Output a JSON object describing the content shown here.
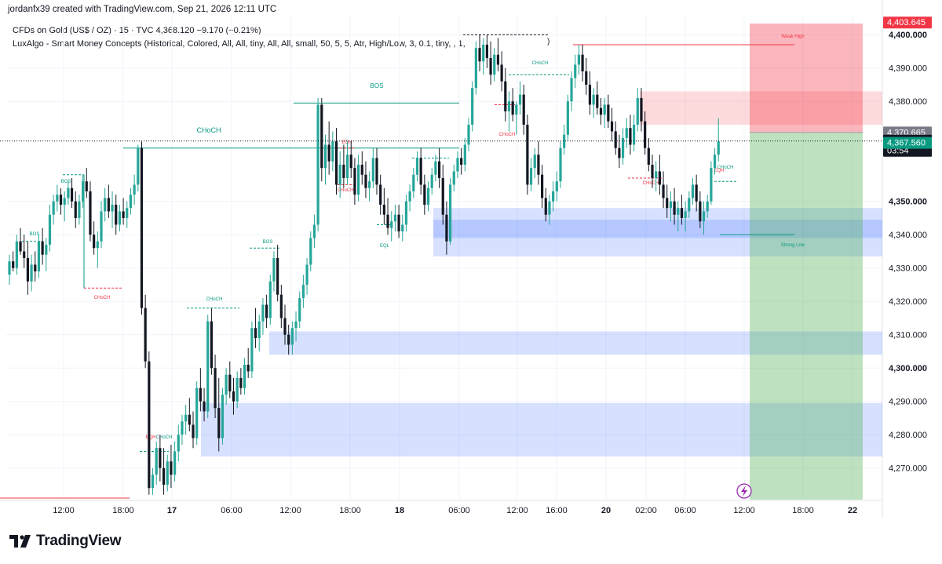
{
  "attribution": "jordanfx39 created with TradingView.com, Sep 21, 2026 12:11 UTC",
  "legend": {
    "symbol_line": "CFDs on Gold (US$ / OZ) · 15 · TVC  4,368.120  −9.170 (−0.21%)",
    "indicator_line": "LuxAlgo - Smart Money Concepts (Historical, Colored, All, All, tiny, All, All, small, 50, 5, 5, Atr, High/Low, 3, 0.1, tiny, , 1,"
  },
  "brand": {
    "name": "TradingView",
    "icon": "tradingview-logo-icon"
  },
  "colors": {
    "up": "#26a69a",
    "down": "#131722",
    "supply": "#f77c80",
    "demand": "#2962ff",
    "long_zone": "#4caf50",
    "bull_structure": "#089981",
    "bear_structure": "#f23645"
  },
  "chart_data": {
    "type": "candlestick",
    "symbol": "CFDs on Gold (US$ / OZ)",
    "interval": "15",
    "ylim": [
      4262,
      4412
    ],
    "y_ticks": [
      {
        "v": 4400,
        "label": "4,400.000",
        "bold": true
      },
      {
        "v": 4390,
        "label": "4,390.000",
        "bold": false
      },
      {
        "v": 4380,
        "label": "4,380.000",
        "bold": false
      },
      {
        "v": 4350,
        "label": "4,350.000",
        "bold": true
      },
      {
        "v": 4340,
        "label": "4,340.000",
        "bold": false
      },
      {
        "v": 4330,
        "label": "4,330.000",
        "bold": false
      },
      {
        "v": 4320,
        "label": "4,320.000",
        "bold": false
      },
      {
        "v": 4310,
        "label": "4,310.000",
        "bold": false
      },
      {
        "v": 4300,
        "label": "4,300.000",
        "bold": true
      },
      {
        "v": 4290,
        "label": "4,290.000",
        "bold": false
      },
      {
        "v": 4280,
        "label": "4,280.000",
        "bold": false
      },
      {
        "v": 4270,
        "label": "4,270.000",
        "bold": false
      }
    ],
    "x_ticks": [
      {
        "label": "12:00",
        "bold": false
      },
      {
        "label": "18:00",
        "bold": false
      },
      {
        "label": "17",
        "bold": true
      },
      {
        "label": "06:00",
        "bold": false
      },
      {
        "label": "12:00",
        "bold": false
      },
      {
        "label": "18:00",
        "bold": false
      },
      {
        "label": "18",
        "bold": true
      },
      {
        "label": "06:00",
        "bold": false
      },
      {
        "label": "12:00",
        "bold": false
      },
      {
        "label": "16:00",
        "bold": false
      },
      {
        "label": "20",
        "bold": true
      },
      {
        "label": "02:00",
        "bold": false
      },
      {
        "label": "06:00",
        "bold": false
      },
      {
        "label": "12:00",
        "bold": false
      },
      {
        "label": "18:00",
        "bold": false
      },
      {
        "label": "22",
        "bold": true
      }
    ],
    "price_labels": [
      {
        "value": 4403.645,
        "label": "4,403.645",
        "color": "#f23645"
      },
      {
        "value": 4370.665,
        "label": "4,370.665",
        "color": "#787b86"
      },
      {
        "value": 4368.12,
        "label": "4,368.120",
        "sub": "03:54",
        "color": "#131722"
      },
      {
        "value": 4367.56,
        "label": "4,367.560",
        "color": "#089981"
      }
    ],
    "last_price": 4368.12,
    "countdown": "03:54",
    "position": {
      "type": "long",
      "entry": 4370.665,
      "target": 4403.645,
      "stop": 4262
    },
    "zones": [
      {
        "kind": "supply",
        "top": 4383,
        "bottom": 4373
      },
      {
        "kind": "demand",
        "top": 4348,
        "bottom": 4339
      },
      {
        "kind": "demand",
        "top": 4344.5,
        "bottom": 4333.5
      },
      {
        "kind": "demand",
        "top": 4311,
        "bottom": 4304
      },
      {
        "kind": "demand",
        "top": 4289.5,
        "bottom": 4273.5
      }
    ],
    "structure_labels": [
      {
        "text": "BOS",
        "color": "bull"
      },
      {
        "text": "CHoCH",
        "color": "bull"
      },
      {
        "text": "BOS",
        "color": "bull"
      },
      {
        "text": "BOS",
        "color": "bull"
      },
      {
        "text": "BOS",
        "color": "bull"
      },
      {
        "text": "CHoCH",
        "color": "bear"
      },
      {
        "text": "EQH",
        "color": "bear"
      },
      {
        "text": "CHoCH",
        "color": "bull"
      },
      {
        "text": "CHoCH",
        "color": "bear"
      },
      {
        "text": "EQH",
        "color": "bear"
      },
      {
        "text": "CHoCH",
        "color": "bull"
      },
      {
        "text": "EQL",
        "color": "bull"
      },
      {
        "text": "CHoCH",
        "color": "bull"
      },
      {
        "text": "CHoCH",
        "color": "bear"
      },
      {
        "text": "CHoCH",
        "color": "bear"
      },
      {
        "text": "CHoCH",
        "color": "bull"
      },
      {
        "text": "EQH",
        "color": "bear"
      },
      {
        "text": "Weak High",
        "color": "bear"
      },
      {
        "text": "Strong Low",
        "color": "bull"
      }
    ],
    "candles": [
      [
        4328,
        4334,
        4325,
        4332
      ],
      [
        4332,
        4335,
        4329,
        4330
      ],
      [
        4330,
        4340,
        4328,
        4338
      ],
      [
        4338,
        4342,
        4334,
        4335
      ],
      [
        4335,
        4340,
        4330,
        4333
      ],
      [
        4333,
        4338,
        4322,
        4326
      ],
      [
        4326,
        4334,
        4323,
        4331
      ],
      [
        4331,
        4335,
        4326,
        4329
      ],
      [
        4329,
        4340,
        4327,
        4338
      ],
      [
        4338,
        4342,
        4331,
        4334
      ],
      [
        4334,
        4339,
        4329,
        4337
      ],
      [
        4337,
        4349,
        4335,
        4346
      ],
      [
        4346,
        4352,
        4343,
        4350
      ],
      [
        4350,
        4355,
        4347,
        4352
      ],
      [
        4352,
        4354,
        4346,
        4349
      ],
      [
        4349,
        4353,
        4344,
        4351
      ],
      [
        4351,
        4356,
        4349,
        4354
      ],
      [
        4354,
        4357,
        4348,
        4350
      ],
      [
        4350,
        4353,
        4342,
        4345
      ],
      [
        4345,
        4352,
        4343,
        4350
      ],
      [
        4350,
        4358,
        4348,
        4356
      ],
      [
        4356,
        4360,
        4351,
        4353
      ],
      [
        4353,
        4356,
        4338,
        4340
      ],
      [
        4340,
        4344,
        4334,
        4336
      ],
      [
        4336,
        4341,
        4330,
        4338
      ],
      [
        4338,
        4350,
        4336,
        4347
      ],
      [
        4347,
        4354,
        4344,
        4351
      ],
      [
        4351,
        4355,
        4345,
        4347
      ],
      [
        4347,
        4353,
        4342,
        4349
      ],
      [
        4349,
        4352,
        4340,
        4343
      ],
      [
        4343,
        4349,
        4341,
        4347
      ],
      [
        4347,
        4351,
        4343,
        4345
      ],
      [
        4345,
        4350,
        4342,
        4348
      ],
      [
        4348,
        4354,
        4346,
        4352
      ],
      [
        4352,
        4358,
        4349,
        4355
      ],
      [
        4355,
        4367,
        4353,
        4366
      ],
      [
        4366,
        4368,
        4316,
        4318
      ],
      [
        4318,
        4322,
        4300,
        4302
      ],
      [
        4302,
        4305,
        4262,
        4264
      ],
      [
        4264,
        4270,
        4262,
        4268
      ],
      [
        4268,
        4278,
        4265,
        4276
      ],
      [
        4276,
        4280,
        4266,
        4270
      ],
      [
        4270,
        4276,
        4262,
        4265
      ],
      [
        4265,
        4274,
        4263,
        4272
      ],
      [
        4272,
        4277,
        4264,
        4268
      ],
      [
        4268,
        4278,
        4266,
        4275
      ],
      [
        4275,
        4283,
        4272,
        4280
      ],
      [
        4280,
        4286,
        4277,
        4284
      ],
      [
        4284,
        4289,
        4280,
        4286
      ],
      [
        4286,
        4291,
        4281,
        4283
      ],
      [
        4283,
        4287,
        4276,
        4279
      ],
      [
        4279,
        4296,
        4277,
        4294
      ],
      [
        4294,
        4300,
        4287,
        4290
      ],
      [
        4290,
        4294,
        4284,
        4287
      ],
      [
        4287,
        4316,
        4285,
        4314
      ],
      [
        4314,
        4318,
        4298,
        4300
      ],
      [
        4300,
        4304,
        4285,
        4288
      ],
      [
        4288,
        4297,
        4275,
        4279
      ],
      [
        4279,
        4294,
        4277,
        4292
      ],
      [
        4292,
        4300,
        4289,
        4298
      ],
      [
        4298,
        4302,
        4291,
        4293
      ],
      [
        4293,
        4297,
        4286,
        4290
      ],
      [
        4290,
        4299,
        4288,
        4297
      ],
      [
        4297,
        4300,
        4292,
        4294
      ],
      [
        4294,
        4303,
        4292,
        4301
      ],
      [
        4301,
        4306,
        4297,
        4299
      ],
      [
        4299,
        4314,
        4297,
        4312
      ],
      [
        4312,
        4318,
        4306,
        4309
      ],
      [
        4309,
        4316,
        4305,
        4314
      ],
      [
        4314,
        4321,
        4310,
        4319
      ],
      [
        4319,
        4322,
        4312,
        4315
      ],
      [
        4315,
        4328,
        4313,
        4326
      ],
      [
        4326,
        4335,
        4323,
        4333
      ],
      [
        4333,
        4337,
        4320,
        4322
      ],
      [
        4322,
        4325,
        4312,
        4315
      ],
      [
        4315,
        4319,
        4307,
        4310
      ],
      [
        4310,
        4313,
        4304,
        4307
      ],
      [
        4307,
        4314,
        4304,
        4312
      ],
      [
        4312,
        4317,
        4308,
        4314
      ],
      [
        4314,
        4323,
        4312,
        4321
      ],
      [
        4321,
        4328,
        4318,
        4325
      ],
      [
        4325,
        4333,
        4322,
        4331
      ],
      [
        4331,
        4341,
        4329,
        4339
      ],
      [
        4339,
        4346,
        4336,
        4343
      ],
      [
        4343,
        4381,
        4341,
        4379
      ],
      [
        4379,
        4381,
        4356,
        4360
      ],
      [
        4360,
        4370,
        4355,
        4367
      ],
      [
        4367,
        4374,
        4358,
        4362
      ],
      [
        4362,
        4371,
        4359,
        4368
      ],
      [
        4368,
        4372,
        4352,
        4355
      ],
      [
        4355,
        4365,
        4351,
        4361
      ],
      [
        4361,
        4367,
        4354,
        4357
      ],
      [
        4357,
        4368,
        4355,
        4364
      ],
      [
        4364,
        4368,
        4357,
        4360
      ],
      [
        4360,
        4363,
        4349,
        4352
      ],
      [
        4352,
        4364,
        4350,
        4361
      ],
      [
        4361,
        4365,
        4355,
        4358
      ],
      [
        4358,
        4362,
        4351,
        4354
      ],
      [
        4354,
        4359,
        4350,
        4356
      ],
      [
        4356,
        4366,
        4354,
        4363
      ],
      [
        4363,
        4366,
        4352,
        4355
      ],
      [
        4355,
        4358,
        4346,
        4349
      ],
      [
        4349,
        4354,
        4343,
        4346
      ],
      [
        4346,
        4351,
        4340,
        4342
      ],
      [
        4342,
        4347,
        4338,
        4344
      ],
      [
        4344,
        4349,
        4341,
        4346
      ],
      [
        4346,
        4349,
        4339,
        4341
      ],
      [
        4341,
        4346,
        4338,
        4343
      ],
      [
        4343,
        4352,
        4341,
        4350
      ],
      [
        4350,
        4355,
        4347,
        4353
      ],
      [
        4353,
        4360,
        4351,
        4358
      ],
      [
        4358,
        4365,
        4356,
        4363
      ],
      [
        4363,
        4366,
        4352,
        4355
      ],
      [
        4355,
        4358,
        4346,
        4349
      ],
      [
        4349,
        4356,
        4347,
        4354
      ],
      [
        4354,
        4360,
        4352,
        4358
      ],
      [
        4358,
        4364,
        4356,
        4362
      ],
      [
        4362,
        4366,
        4354,
        4357
      ],
      [
        4357,
        4361,
        4343,
        4346
      ],
      [
        4346,
        4350,
        4334,
        4338
      ],
      [
        4338,
        4357,
        4337,
        4355
      ],
      [
        4355,
        4361,
        4353,
        4359
      ],
      [
        4359,
        4365,
        4357,
        4363
      ],
      [
        4363,
        4366,
        4358,
        4361
      ],
      [
        4361,
        4369,
        4359,
        4367
      ],
      [
        4367,
        4375,
        4365,
        4373
      ],
      [
        4373,
        4386,
        4371,
        4384
      ],
      [
        4384,
        4398,
        4382,
        4396
      ],
      [
        4396,
        4400,
        4389,
        4392
      ],
      [
        4392,
        4399,
        4388,
        4397
      ],
      [
        4397,
        4400,
        4390,
        4393
      ],
      [
        4393,
        4398,
        4385,
        4388
      ],
      [
        4388,
        4396,
        4386,
        4394
      ],
      [
        4394,
        4399,
        4389,
        4391
      ],
      [
        4391,
        4395,
        4383,
        4386
      ],
      [
        4386,
        4390,
        4374,
        4377
      ],
      [
        4377,
        4383,
        4371,
        4380
      ],
      [
        4380,
        4384,
        4374,
        4376
      ],
      [
        4376,
        4380,
        4370,
        4379
      ],
      [
        4379,
        4386,
        4376,
        4382
      ],
      [
        4382,
        4385,
        4370,
        4373
      ],
      [
        4373,
        4376,
        4352,
        4355
      ],
      [
        4355,
        4363,
        4353,
        4360
      ],
      [
        4360,
        4366,
        4357,
        4364
      ],
      [
        4364,
        4368,
        4355,
        4358
      ],
      [
        4358,
        4361,
        4348,
        4351
      ],
      [
        4351,
        4354,
        4344,
        4346
      ],
      [
        4346,
        4352,
        4343,
        4350
      ],
      [
        4350,
        4356,
        4347,
        4353
      ],
      [
        4353,
        4359,
        4350,
        4356
      ],
      [
        4356,
        4368,
        4354,
        4366
      ],
      [
        4366,
        4373,
        4364,
        4370
      ],
      [
        4370,
        4382,
        4368,
        4380
      ],
      [
        4380,
        4389,
        4377,
        4387
      ],
      [
        4387,
        4394,
        4384,
        4391
      ],
      [
        4391,
        4397,
        4388,
        4394
      ],
      [
        4394,
        4397,
        4386,
        4389
      ],
      [
        4389,
        4393,
        4382,
        4385
      ],
      [
        4385,
        4389,
        4376,
        4379
      ],
      [
        4379,
        4384,
        4375,
        4382
      ],
      [
        4382,
        4386,
        4376,
        4378
      ],
      [
        4378,
        4381,
        4373,
        4376
      ],
      [
        4376,
        4381,
        4372,
        4379
      ],
      [
        4379,
        4382,
        4372,
        4374
      ],
      [
        4374,
        4378,
        4368,
        4371
      ],
      [
        4371,
        4374,
        4364,
        4366
      ],
      [
        4366,
        4370,
        4360,
        4363
      ],
      [
        4363,
        4372,
        4361,
        4369
      ],
      [
        4369,
        4375,
        4366,
        4372
      ],
      [
        4372,
        4376,
        4364,
        4367
      ],
      [
        4367,
        4376,
        4365,
        4373
      ],
      [
        4373,
        4384,
        4371,
        4381
      ],
      [
        4381,
        4384,
        4371,
        4374
      ],
      [
        4374,
        4377,
        4364,
        4366
      ],
      [
        4366,
        4369,
        4359,
        4361
      ],
      [
        4361,
        4364,
        4354,
        4357
      ],
      [
        4357,
        4362,
        4353,
        4359
      ],
      [
        4359,
        4364,
        4352,
        4355
      ],
      [
        4355,
        4359,
        4348,
        4351
      ],
      [
        4351,
        4355,
        4345,
        4348
      ],
      [
        4348,
        4353,
        4344,
        4350
      ],
      [
        4350,
        4354,
        4343,
        4346
      ],
      [
        4346,
        4350,
        4341,
        4348
      ],
      [
        4348,
        4352,
        4343,
        4345
      ],
      [
        4345,
        4350,
        4341,
        4347
      ],
      [
        4347,
        4353,
        4345,
        4351
      ],
      [
        4351,
        4357,
        4349,
        4355
      ],
      [
        4355,
        4358,
        4347,
        4350
      ],
      [
        4350,
        4353,
        4342,
        4344
      ],
      [
        4344,
        4350,
        4340,
        4347
      ],
      [
        4347,
        4352,
        4345,
        4350
      ],
      [
        4350,
        4362,
        4349,
        4360
      ],
      [
        4360,
        4366,
        4358,
        4364
      ],
      [
        4364,
        4375,
        4362,
        4368
      ]
    ]
  }
}
